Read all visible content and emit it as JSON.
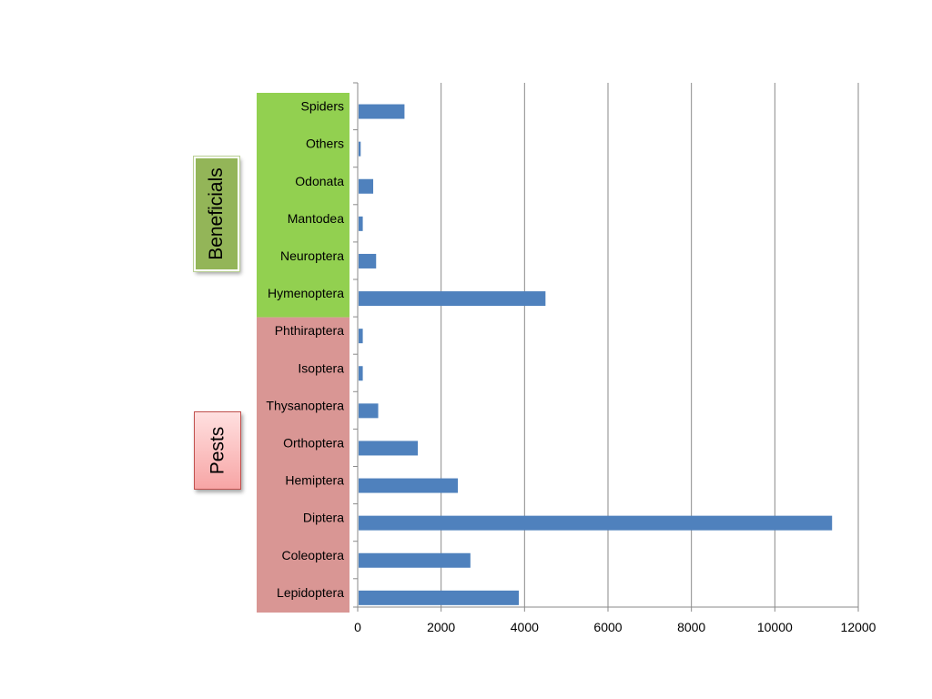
{
  "chart_data": {
    "type": "bar",
    "orientation": "horizontal",
    "title": "",
    "xlabel": "",
    "ylabel": "",
    "xlim": [
      0,
      12000
    ],
    "xticks": [
      0,
      2000,
      4000,
      6000,
      8000,
      10000,
      12000
    ],
    "grid": true,
    "legend": "none",
    "categories": [
      "Spiders",
      "Others",
      "Odonata",
      "Mantodea",
      "Neuroptera",
      "Hymenoptera",
      "Phthiraptera",
      "Isoptera",
      "Thysanoptera",
      "Orthoptera",
      "Hemiptera",
      "Diptera",
      "Coleoptera",
      "Lepidoptera"
    ],
    "values": [
      1100,
      50,
      350,
      100,
      420,
      4480,
      100,
      100,
      470,
      1420,
      2380,
      11350,
      2680,
      3840
    ],
    "groups": [
      {
        "label": "Beneficials",
        "categories": [
          "Spiders",
          "Others",
          "Odonata",
          "Mantodea",
          "Neuroptera",
          "Hymenoptera"
        ],
        "color": "#92d050"
      },
      {
        "label": "Pests",
        "categories": [
          "Phthiraptera",
          "Isoptera",
          "Thysanoptera",
          "Orthoptera",
          "Hemiptera",
          "Diptera",
          "Coleoptera",
          "Lepidoptera"
        ],
        "color": "#d99694"
      }
    ],
    "bar_color": "#4f81bd"
  }
}
